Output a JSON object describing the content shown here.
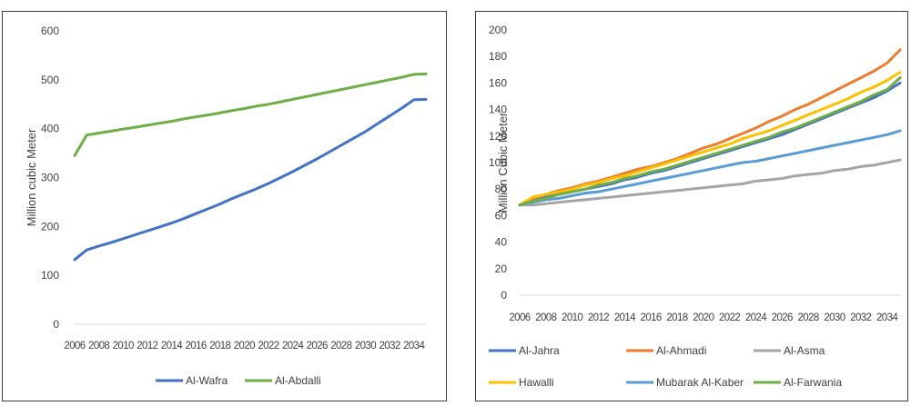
{
  "chart_data": [
    {
      "type": "line",
      "ylabel": "Million cubic Meter",
      "xlabel": "",
      "ylim": [
        0,
        600
      ],
      "yticks": [
        "0",
        "100",
        "200",
        "300",
        "400",
        "500",
        "600"
      ],
      "x_tick_labels": [
        "2006",
        "2008",
        "2010",
        "2012",
        "2014",
        "2016",
        "2018",
        "2020",
        "2022",
        "2024",
        "2026",
        "2028",
        "2030",
        "2032",
        "2034"
      ],
      "x": [
        2006,
        2007,
        2008,
        2009,
        2010,
        2011,
        2012,
        2013,
        2014,
        2015,
        2016,
        2017,
        2018,
        2019,
        2020,
        2021,
        2022,
        2023,
        2024,
        2025,
        2026,
        2027,
        2028,
        2029,
        2030,
        2031,
        2032,
        2033,
        2034,
        2035
      ],
      "gridlines": false,
      "legend_position": "bottom",
      "series": [
        {
          "name": "Al-Wafra",
          "color": "#4472c4",
          "values": [
            132,
            152,
            160,
            167,
            175,
            183,
            191,
            199,
            207,
            216,
            226,
            236,
            246,
            257,
            267,
            277,
            288,
            300,
            312,
            325,
            338,
            352,
            366,
            380,
            394,
            410,
            426,
            442,
            459,
            460
          ]
        },
        {
          "name": "Al-Abdalli",
          "color": "#70ad47",
          "values": [
            345,
            387,
            391,
            395,
            399,
            403,
            407,
            411,
            415,
            420,
            424,
            428,
            432,
            437,
            441,
            446,
            450,
            455,
            460,
            465,
            470,
            475,
            480,
            485,
            490,
            495,
            500,
            505,
            511,
            512
          ]
        }
      ]
    },
    {
      "type": "line",
      "ylabel": "Million Cubic Meter",
      "xlabel": "",
      "ylim": [
        0,
        200
      ],
      "yticks": [
        "0",
        "20",
        "40",
        "60",
        "80",
        "100",
        "120",
        "140",
        "160",
        "180",
        "200"
      ],
      "x_tick_labels": [
        "2006",
        "2008",
        "2010",
        "2012",
        "2014",
        "2016",
        "2018",
        "2020",
        "2022",
        "2024",
        "2026",
        "2028",
        "2030",
        "2032",
        "2034"
      ],
      "x": [
        2006,
        2007,
        2008,
        2009,
        2010,
        2011,
        2012,
        2013,
        2014,
        2015,
        2016,
        2017,
        2018,
        2019,
        2020,
        2021,
        2022,
        2023,
        2024,
        2025,
        2026,
        2027,
        2028,
        2029,
        2030,
        2031,
        2032,
        2033,
        2034,
        2035
      ],
      "gridlines": false,
      "legend_position": "bottom",
      "series": [
        {
          "name": "Al-Jahra",
          "color": "#4472c4",
          "values": [
            68,
            72,
            74,
            76,
            78,
            80,
            82,
            84,
            87,
            89,
            92,
            94,
            97,
            100,
            103,
            106,
            109,
            112,
            115,
            118,
            121,
            125,
            129,
            133,
            137,
            141,
            145,
            149,
            154,
            160
          ]
        },
        {
          "name": "Al-Ahmadi",
          "color": "#ed7d31",
          "values": [
            68,
            73,
            76,
            79,
            81,
            84,
            86,
            89,
            92,
            95,
            97,
            100,
            103,
            107,
            111,
            114,
            118,
            122,
            126,
            131,
            135,
            140,
            144,
            149,
            154,
            159,
            164,
            169,
            175,
            185
          ]
        },
        {
          "name": "Al-Asma",
          "color": "#a5a5a5",
          "values": [
            68,
            68,
            69,
            70,
            71,
            72,
            73,
            74,
            75,
            76,
            77,
            78,
            79,
            80,
            81,
            82,
            83,
            84,
            86,
            87,
            88,
            90,
            91,
            92,
            94,
            95,
            97,
            98,
            100,
            102
          ]
        },
        {
          "name": "Hawalli",
          "color": "#ffc000",
          "values": [
            68,
            74,
            76,
            78,
            80,
            83,
            85,
            88,
            90,
            93,
            96,
            99,
            102,
            105,
            108,
            111,
            114,
            118,
            121,
            124,
            128,
            132,
            136,
            140,
            144,
            148,
            153,
            157,
            162,
            168
          ]
        },
        {
          "name": "Mubarak Al-Kaber",
          "color": "#5b9bd5",
          "values": [
            68,
            70,
            72,
            73,
            75,
            77,
            78,
            80,
            82,
            84,
            86,
            88,
            90,
            92,
            94,
            96,
            98,
            100,
            101,
            103,
            105,
            107,
            109,
            111,
            113,
            115,
            117,
            119,
            121,
            124
          ]
        },
        {
          "name": "Al-Farwania",
          "color": "#70ad47",
          "values": [
            68,
            71,
            73,
            76,
            78,
            80,
            83,
            85,
            88,
            90,
            93,
            95,
            98,
            101,
            104,
            107,
            110,
            113,
            116,
            119,
            123,
            126,
            130,
            134,
            138,
            142,
            146,
            151,
            155,
            164
          ]
        }
      ]
    }
  ]
}
